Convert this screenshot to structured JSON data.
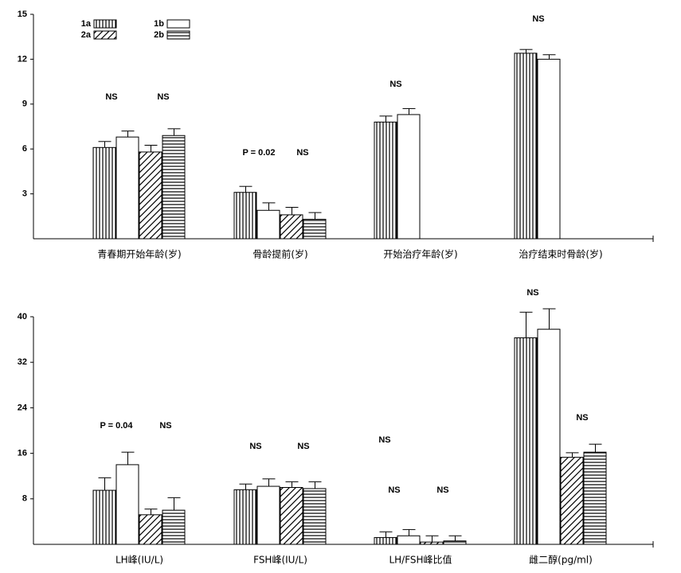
{
  "chart_data": [
    {
      "type": "bar",
      "categories": [
        "青春期开始年龄(岁)",
        "骨龄提前(岁)",
        "开始治疗年龄(岁)",
        "治疗结束时骨龄(岁)"
      ],
      "series": [
        {
          "name": "1a",
          "values": [
            6.1,
            3.1,
            7.8,
            12.4
          ],
          "errors": [
            0.4,
            0.4,
            0.4,
            0.25
          ]
        },
        {
          "name": "1b",
          "values": [
            6.8,
            1.9,
            8.3,
            12.0
          ],
          "errors": [
            0.4,
            0.5,
            0.4,
            0.3
          ]
        },
        {
          "name": "2a",
          "values": [
            5.8,
            1.6,
            null,
            null
          ],
          "errors": [
            0.45,
            0.5,
            null,
            null
          ]
        },
        {
          "name": "2b",
          "values": [
            6.9,
            1.3,
            null,
            null
          ],
          "errors": [
            0.45,
            0.45,
            null,
            null
          ]
        }
      ],
      "annotations": [
        "NS",
        "NS",
        "P = 0.02",
        "NS",
        "NS",
        "NS"
      ],
      "ylim": [
        0,
        15
      ],
      "yticks": [
        3,
        6,
        9,
        12,
        15
      ],
      "legend": "upper left"
    },
    {
      "type": "bar",
      "categories": [
        "LH峰(IU/L)",
        "FSH峰(IU/L)",
        "LH/FSH峰比值",
        "雌二醇(pg/ml)"
      ],
      "series": [
        {
          "name": "1a",
          "values": [
            9.5,
            9.6,
            1.2,
            36.3
          ],
          "errors": [
            2.2,
            1.0,
            1.0,
            4.5
          ]
        },
        {
          "name": "1b",
          "values": [
            14.0,
            10.2,
            1.5,
            37.8
          ],
          "errors": [
            2.2,
            1.3,
            1.1,
            3.6
          ]
        },
        {
          "name": "2a",
          "values": [
            5.2,
            10.0,
            0.4,
            15.3
          ],
          "errors": [
            1.0,
            1.0,
            1.1,
            0.8
          ]
        },
        {
          "name": "2b",
          "values": [
            6.0,
            9.8,
            0.6,
            16.2
          ],
          "errors": [
            2.2,
            1.2,
            0.9,
            1.4
          ]
        }
      ],
      "annotations": [
        "P = 0.04",
        "NS",
        "NS",
        "NS",
        "NS",
        "NS",
        "NS",
        "NS",
        "NS"
      ],
      "ylim": [
        0,
        40
      ],
      "yticks": [
        8,
        16,
        24,
        32,
        40
      ]
    }
  ]
}
